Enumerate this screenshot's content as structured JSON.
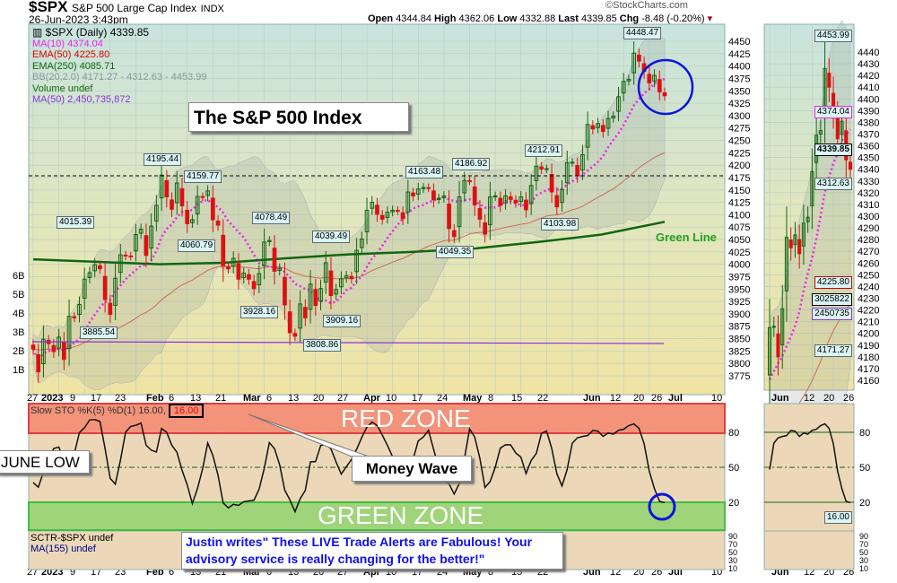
{
  "header": {
    "symbol": "$SPX",
    "name": "S&P 500 Large Cap Index",
    "exchange": "INDX",
    "datetime": "26-Jun-2023 3:43pm",
    "watermark": "©StockCharts.com",
    "open_label": "Open",
    "open": "4344.84",
    "high_label": "High",
    "high": "4362.06",
    "low_label": "Low",
    "low": "4332.88",
    "last_label": "Last",
    "last": "4339.85",
    "chg_label": "Chg",
    "chg": "-8.48 (-0.20%)"
  },
  "legend": {
    "main": "$SPX (Daily) 4339.85",
    "ma10": "MA(10) 4374.04",
    "ema50": "EMA(50) 4225.80",
    "ema250": "EMA(250) 4085.71",
    "bb": "BB(20,2.0) 4171.27 - 4312.63 - 4453.99",
    "volume": "Volume undef",
    "vma50": "MA(50) 2,450,735,872"
  },
  "colors": {
    "ma10": "#ee22ee",
    "ema50": "#dd0000",
    "ema250": "#116611",
    "vma": "#8833dd",
    "up": "#116611",
    "down": "#dd1111",
    "red_zone": "#f2937a",
    "green_zone": "#9fd47a",
    "circle": "#0a14e0"
  },
  "annotations": {
    "title": "The S&P 500 Index",
    "green_line": "Green Line",
    "june_low": "JUNE LOW",
    "money_wave": "Money Wave",
    "red_zone": "RED ZONE",
    "green_zone": "GREEN ZONE",
    "testimonial": "Justin writes\" These LIVE Trade Alerts are Fabulous! Your advisory service is really changing for the better!\""
  },
  "price_labels": [
    "4448.47",
    "4195.44",
    "4159.77",
    "4015.39",
    "4060.79",
    "4078.49",
    "4039.49",
    "3928.16",
    "3909.16",
    "3885.54",
    "3808.86",
    "4163.48",
    "4186.92",
    "4212.91",
    "4103.98",
    "4049.35"
  ],
  "sto": {
    "legend": "Slow STO %K(5) %D(1) 16.00,",
    "value": "16.00",
    "sctr": "SCTR-$SPX undef",
    "ma155": "MA(155) undef",
    "ticks": [
      "80",
      "50",
      "20"
    ],
    "sctr_ticks": [
      "90",
      "70",
      "50",
      "30",
      "10"
    ]
  },
  "right_panel": {
    "labels": [
      "4453.99",
      "4374.04",
      "4339.85",
      "4312.63",
      "4225.80",
      "3025822",
      "2450735",
      "4171.27"
    ],
    "sto_label": "16.00",
    "xticks": [
      "Jun",
      "12",
      "20",
      "26"
    ]
  },
  "volume_ticks": [
    "6B",
    "5B",
    "4B",
    "3B",
    "2B",
    "1B"
  ],
  "chart_data": {
    "type": "candlestick",
    "symbol": "$SPX",
    "period": "Daily",
    "dates_range": [
      "2022-12-27",
      "2023-06-26"
    ],
    "xticks": [
      "27",
      "2023",
      "9",
      "17",
      "23",
      "Feb",
      "6",
      "13",
      "21",
      "Mar",
      "6",
      "13",
      "20",
      "27",
      "Apr",
      "10",
      "17",
      "24",
      "May",
      "8",
      "15",
      "22",
      "Jun",
      "12",
      "20",
      "26",
      "Jul",
      "10"
    ],
    "yticks": [
      4450,
      4425,
      4400,
      4375,
      4350,
      4325,
      4300,
      4275,
      4250,
      4225,
      4200,
      4175,
      4150,
      4125,
      4100,
      4075,
      4050,
      4025,
      4000,
      3975,
      3950,
      3925,
      3900,
      3875,
      3850,
      3825,
      3800,
      3775
    ],
    "right_yticks": [
      4440,
      4430,
      4420,
      4410,
      4400,
      4390,
      4380,
      4370,
      4360,
      4350,
      4340,
      4330,
      4320,
      4310,
      4300,
      4290,
      4280,
      4270,
      4260,
      4250,
      4240,
      4230,
      4220,
      4210,
      4200,
      4190,
      4180,
      4170,
      4160
    ],
    "ylim": [
      3760,
      4465
    ],
    "closes": [
      3829,
      3783,
      3849,
      3840,
      3824,
      3853,
      3808,
      3895,
      3892,
      3919,
      3970,
      3983,
      3999,
      3991,
      3929,
      3899,
      3972,
      4019,
      4017,
      4016,
      4060,
      4071,
      4018,
      4077,
      4119,
      4180,
      4136,
      4111,
      4164,
      4118,
      4082,
      4090,
      4137,
      4136,
      4148,
      4090,
      4079,
      3997,
      3991,
      4012,
      3970,
      3982,
      3970,
      3951,
      3981,
      4045,
      4048,
      3986,
      3992,
      3918,
      3862,
      3855,
      3920,
      3892,
      3960,
      3917,
      3951,
      4003,
      3937,
      3949,
      3971,
      3977,
      3971,
      4028,
      4051,
      4109,
      4125,
      4101,
      4091,
      4105,
      4109,
      4108,
      4092,
      4146,
      4138,
      4152,
      4155,
      4154,
      4130,
      4133,
      4138,
      4072,
      4056,
      4136,
      4169,
      4168,
      4120,
      4091,
      4061,
      4136,
      4138,
      4119,
      4138,
      4131,
      4124,
      4136,
      4110,
      4159,
      4198,
      4192,
      4193,
      4146,
      4116,
      4151,
      4205,
      4206,
      4180,
      4221,
      4282,
      4273,
      4284,
      4268,
      4294,
      4299,
      4338,
      4369,
      4373,
      4426,
      4410,
      4389,
      4366,
      4381,
      4348,
      4340
    ],
    "ema250": [
      4010,
      4005,
      4000,
      4003,
      4012,
      4020,
      4025,
      4032,
      4045,
      4060,
      4085.71
    ],
    "sto_levels": [
      80,
      50,
      20
    ],
    "last_sto": 16.0
  }
}
